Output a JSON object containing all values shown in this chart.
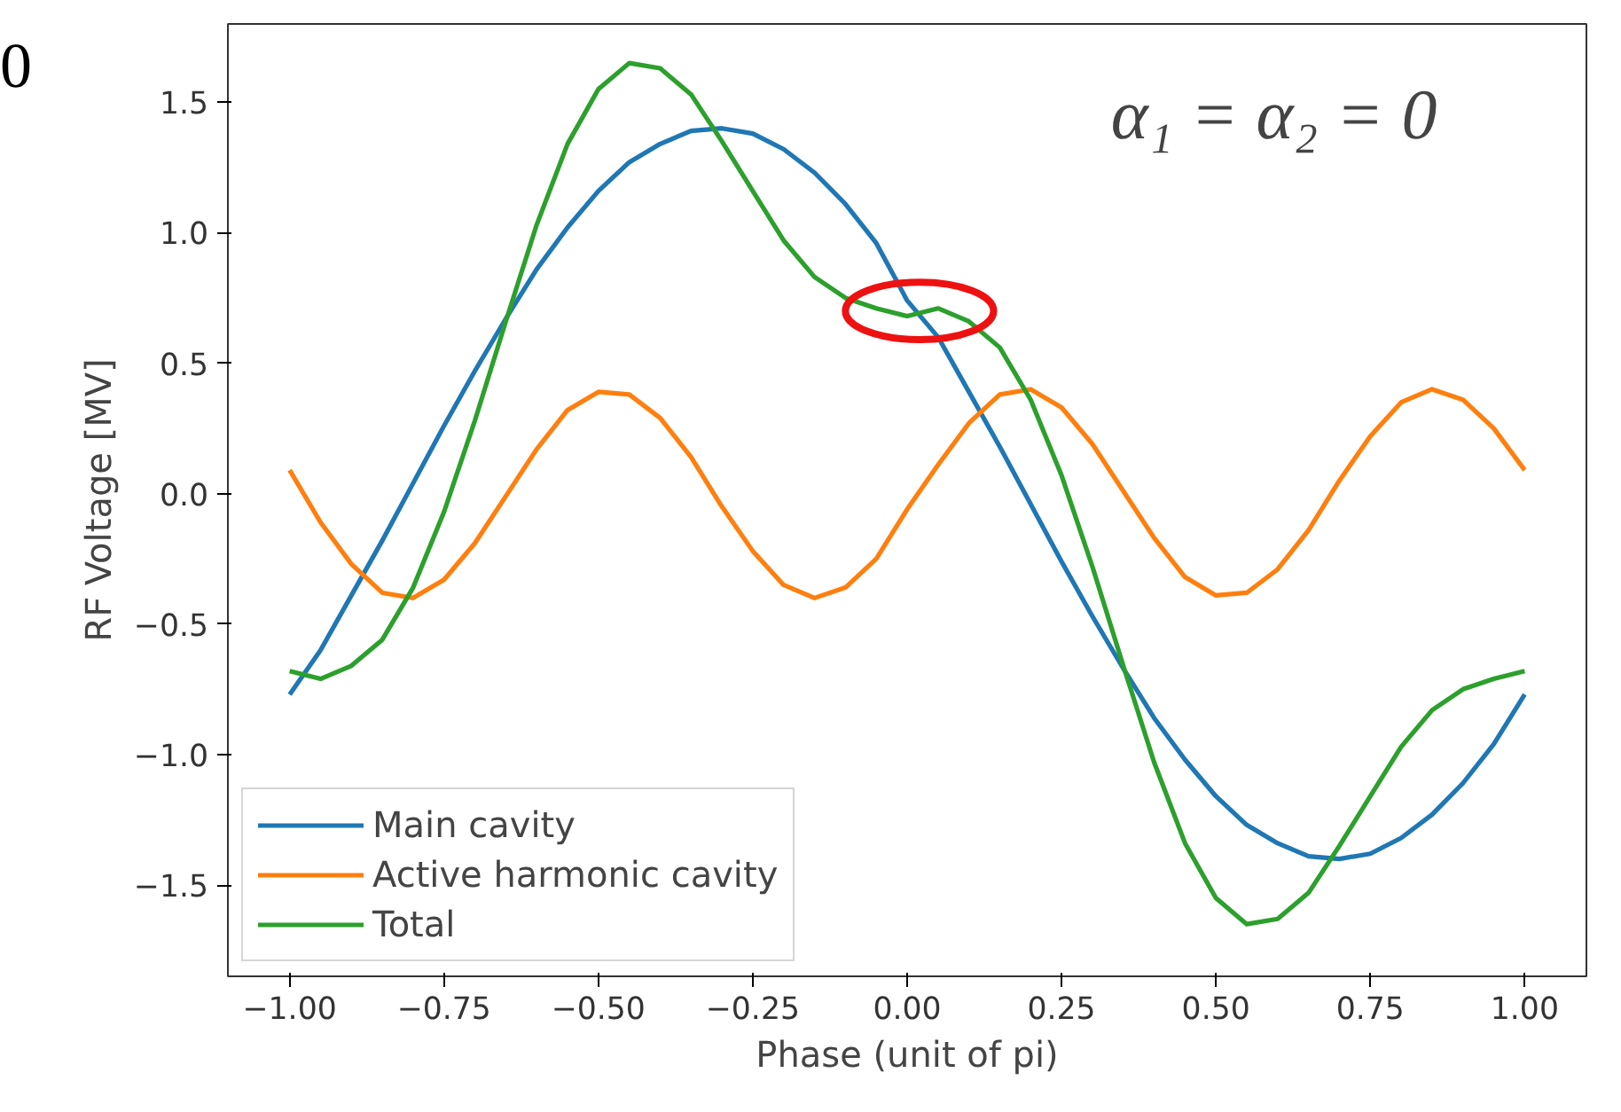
{
  "chart_data": {
    "type": "line",
    "xlabel": "Phase (unit of pi)",
    "ylabel": "RF Voltage [MV]",
    "x": [
      -1.0,
      -0.95,
      -0.9,
      -0.85,
      -0.8,
      -0.75,
      -0.7,
      -0.65,
      -0.6,
      -0.55,
      -0.5,
      -0.45,
      -0.4,
      -0.35,
      -0.3,
      -0.25,
      -0.2,
      -0.15,
      -0.1,
      -0.05,
      0.0,
      0.05,
      0.1,
      0.15,
      0.2,
      0.25,
      0.3,
      0.35,
      0.4,
      0.45,
      0.5,
      0.55,
      0.6,
      0.65,
      0.7,
      0.75,
      0.8,
      0.85,
      0.9,
      0.95,
      1.0
    ],
    "series": [
      {
        "name": "Main cavity",
        "color": "#1f77b4",
        "values": [
          -0.77,
          -0.6,
          -0.39,
          -0.18,
          0.04,
          0.26,
          0.47,
          0.67,
          0.86,
          1.02,
          1.16,
          1.27,
          1.34,
          1.39,
          1.4,
          1.38,
          1.32,
          1.23,
          1.11,
          0.96,
          0.74,
          0.6,
          0.39,
          0.18,
          -0.04,
          -0.26,
          -0.47,
          -0.67,
          -0.86,
          -1.02,
          -1.16,
          -1.27,
          -1.34,
          -1.39,
          -1.4,
          -1.38,
          -1.32,
          -1.23,
          -1.11,
          -0.96,
          -0.77
        ]
      },
      {
        "name": "Active harmonic cavity",
        "color": "#ff7f0e",
        "values": [
          0.09,
          -0.11,
          -0.27,
          -0.38,
          -0.4,
          -0.33,
          -0.19,
          -0.01,
          0.17,
          0.32,
          0.39,
          0.38,
          0.29,
          0.14,
          -0.05,
          -0.22,
          -0.35,
          -0.4,
          -0.36,
          -0.25,
          -0.06,
          0.11,
          0.27,
          0.38,
          0.4,
          0.33,
          0.19,
          0.01,
          -0.17,
          -0.32,
          -0.39,
          -0.38,
          -0.29,
          -0.14,
          0.05,
          0.22,
          0.35,
          0.4,
          0.36,
          0.25,
          0.09
        ]
      },
      {
        "name": "Total",
        "color": "#2ca02c",
        "values": [
          -0.68,
          -0.71,
          -0.66,
          -0.56,
          -0.36,
          -0.07,
          0.28,
          0.66,
          1.03,
          1.34,
          1.55,
          1.65,
          1.63,
          1.53,
          1.35,
          1.16,
          0.97,
          0.83,
          0.75,
          0.71,
          0.68,
          0.71,
          0.66,
          0.56,
          0.36,
          0.07,
          -0.28,
          -0.66,
          -1.03,
          -1.34,
          -1.55,
          -1.65,
          -1.63,
          -1.53,
          -1.35,
          -1.16,
          -0.97,
          -0.83,
          -0.75,
          -0.71,
          -0.68
        ]
      }
    ],
    "xlim": [
      -1.1,
      1.1
    ],
    "ylim": [
      -1.85,
      1.8
    ],
    "xticks": [
      {
        "value": -1.0,
        "label": "−1.00"
      },
      {
        "value": -0.75,
        "label": "−0.75"
      },
      {
        "value": -0.5,
        "label": "−0.50"
      },
      {
        "value": -0.25,
        "label": "−0.25"
      },
      {
        "value": 0,
        "label": "0.00"
      },
      {
        "value": 0.25,
        "label": "0.25"
      },
      {
        "value": 0.5,
        "label": "0.50"
      },
      {
        "value": 0.75,
        "label": "0.75"
      },
      {
        "value": 1.0,
        "label": "1.00"
      }
    ],
    "yticks": [
      {
        "value": -1.5,
        "label": "−1.5"
      },
      {
        "value": -1.0,
        "label": "−1.0"
      },
      {
        "value": -0.5,
        "label": "−0.5"
      },
      {
        "value": 0,
        "label": "0.0"
      },
      {
        "value": 0.5,
        "label": "0.5"
      },
      {
        "value": 1.0,
        "label": "1.0"
      },
      {
        "value": 1.5,
        "label": "1.5"
      }
    ],
    "annotations": [
      "α₁ = α₂ = 0",
      "0"
    ],
    "legend": "bottom left",
    "grid": false,
    "marker": "none",
    "line_style": "solid"
  }
}
